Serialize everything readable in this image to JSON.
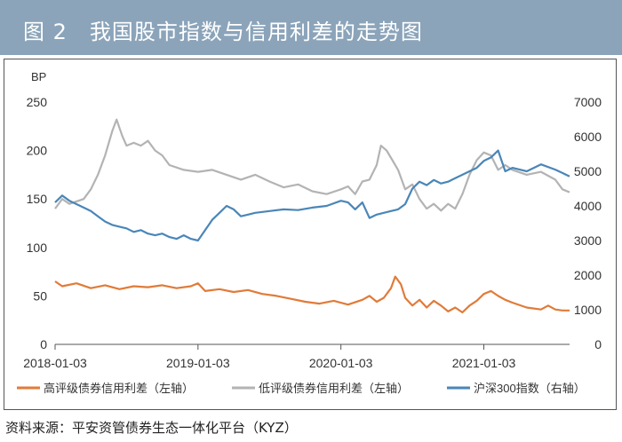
{
  "header": {
    "title": "图 2　我国股市指数与信用利差的走势图"
  },
  "footer": {
    "source": "资料来源：平安资管债券生态一体化平台（KYZ）"
  },
  "chart_data": {
    "type": "line",
    "title": "我国股市指数与信用利差的走势图",
    "left_axis": {
      "label": "BP",
      "min": 0,
      "max": 250,
      "ticks": [
        0,
        50,
        100,
        150,
        200,
        250
      ]
    },
    "right_axis": {
      "label": "",
      "min": 0,
      "max": 7000,
      "ticks": [
        0,
        1000,
        2000,
        3000,
        4000,
        5000,
        6000,
        7000
      ]
    },
    "x_axis": {
      "tick_labels": [
        "2018-01-03",
        "2019-01-03",
        "2020-01-03",
        "2021-01-03"
      ],
      "tick_positions": [
        2018.0,
        2019.0,
        2020.0,
        2021.0
      ],
      "range": [
        2018.0,
        2021.6
      ]
    },
    "legend_position": "bottom",
    "series": [
      {
        "name": "高评级债券信用利差（左轴）",
        "axis": "left",
        "color": "#e07b39",
        "points": [
          [
            2018.0,
            65
          ],
          [
            2018.05,
            60
          ],
          [
            2018.15,
            63
          ],
          [
            2018.25,
            58
          ],
          [
            2018.35,
            61
          ],
          [
            2018.45,
            57
          ],
          [
            2018.55,
            60
          ],
          [
            2018.65,
            59
          ],
          [
            2018.75,
            61
          ],
          [
            2018.85,
            58
          ],
          [
            2018.95,
            60
          ],
          [
            2019.0,
            63
          ],
          [
            2019.05,
            55
          ],
          [
            2019.15,
            57
          ],
          [
            2019.25,
            54
          ],
          [
            2019.35,
            56
          ],
          [
            2019.45,
            52
          ],
          [
            2019.55,
            50
          ],
          [
            2019.65,
            47
          ],
          [
            2019.75,
            44
          ],
          [
            2019.85,
            42
          ],
          [
            2019.95,
            45
          ],
          [
            2020.05,
            41
          ],
          [
            2020.15,
            46
          ],
          [
            2020.2,
            50
          ],
          [
            2020.25,
            44
          ],
          [
            2020.3,
            48
          ],
          [
            2020.35,
            58
          ],
          [
            2020.38,
            70
          ],
          [
            2020.42,
            62
          ],
          [
            2020.45,
            48
          ],
          [
            2020.5,
            40
          ],
          [
            2020.55,
            46
          ],
          [
            2020.6,
            38
          ],
          [
            2020.65,
            45
          ],
          [
            2020.7,
            40
          ],
          [
            2020.75,
            34
          ],
          [
            2020.8,
            38
          ],
          [
            2020.85,
            33
          ],
          [
            2020.9,
            40
          ],
          [
            2020.95,
            45
          ],
          [
            2021.0,
            52
          ],
          [
            2021.05,
            55
          ],
          [
            2021.1,
            50
          ],
          [
            2021.15,
            46
          ],
          [
            2021.2,
            43
          ],
          [
            2021.3,
            38
          ],
          [
            2021.4,
            36
          ],
          [
            2021.45,
            40
          ],
          [
            2021.5,
            36
          ],
          [
            2021.55,
            35
          ],
          [
            2021.6,
            35
          ]
        ]
      },
      {
        "name": "低评级债券信用利差（左轴）",
        "axis": "left",
        "color": "#b3b3b3",
        "points": [
          [
            2018.0,
            140
          ],
          [
            2018.05,
            150
          ],
          [
            2018.1,
            145
          ],
          [
            2018.2,
            150
          ],
          [
            2018.25,
            160
          ],
          [
            2018.3,
            175
          ],
          [
            2018.35,
            195
          ],
          [
            2018.4,
            220
          ],
          [
            2018.43,
            232
          ],
          [
            2018.47,
            215
          ],
          [
            2018.5,
            205
          ],
          [
            2018.55,
            208
          ],
          [
            2018.6,
            205
          ],
          [
            2018.65,
            210
          ],
          [
            2018.7,
            200
          ],
          [
            2018.75,
            195
          ],
          [
            2018.8,
            185
          ],
          [
            2018.9,
            180
          ],
          [
            2019.0,
            178
          ],
          [
            2019.1,
            180
          ],
          [
            2019.2,
            175
          ],
          [
            2019.3,
            170
          ],
          [
            2019.4,
            175
          ],
          [
            2019.5,
            168
          ],
          [
            2019.6,
            162
          ],
          [
            2019.7,
            165
          ],
          [
            2019.8,
            158
          ],
          [
            2019.9,
            155
          ],
          [
            2020.0,
            160
          ],
          [
            2020.05,
            163
          ],
          [
            2020.1,
            155
          ],
          [
            2020.15,
            168
          ],
          [
            2020.2,
            170
          ],
          [
            2020.25,
            185
          ],
          [
            2020.28,
            205
          ],
          [
            2020.32,
            200
          ],
          [
            2020.36,
            190
          ],
          [
            2020.4,
            180
          ],
          [
            2020.45,
            160
          ],
          [
            2020.5,
            165
          ],
          [
            2020.55,
            150
          ],
          [
            2020.6,
            140
          ],
          [
            2020.65,
            145
          ],
          [
            2020.7,
            138
          ],
          [
            2020.75,
            145
          ],
          [
            2020.8,
            140
          ],
          [
            2020.85,
            155
          ],
          [
            2020.9,
            175
          ],
          [
            2020.95,
            190
          ],
          [
            2021.0,
            198
          ],
          [
            2021.05,
            195
          ],
          [
            2021.1,
            180
          ],
          [
            2021.15,
            185
          ],
          [
            2021.2,
            180
          ],
          [
            2021.3,
            175
          ],
          [
            2021.4,
            178
          ],
          [
            2021.5,
            170
          ],
          [
            2021.55,
            160
          ],
          [
            2021.6,
            157
          ]
        ]
      },
      {
        "name": "沪深300指数（右轴）",
        "axis": "right",
        "color": "#4a86b8",
        "points": [
          [
            2018.0,
            4100
          ],
          [
            2018.05,
            4300
          ],
          [
            2018.1,
            4150
          ],
          [
            2018.15,
            4050
          ],
          [
            2018.2,
            3950
          ],
          [
            2018.25,
            3850
          ],
          [
            2018.3,
            3700
          ],
          [
            2018.35,
            3550
          ],
          [
            2018.4,
            3450
          ],
          [
            2018.45,
            3400
          ],
          [
            2018.5,
            3350
          ],
          [
            2018.55,
            3250
          ],
          [
            2018.6,
            3300
          ],
          [
            2018.65,
            3200
          ],
          [
            2018.7,
            3150
          ],
          [
            2018.75,
            3200
          ],
          [
            2018.8,
            3100
          ],
          [
            2018.85,
            3050
          ],
          [
            2018.9,
            3150
          ],
          [
            2018.95,
            3050
          ],
          [
            2019.0,
            3000
          ],
          [
            2019.05,
            3300
          ],
          [
            2019.1,
            3600
          ],
          [
            2019.15,
            3800
          ],
          [
            2019.2,
            4000
          ],
          [
            2019.25,
            3900
          ],
          [
            2019.3,
            3700
          ],
          [
            2019.35,
            3750
          ],
          [
            2019.4,
            3800
          ],
          [
            2019.5,
            3850
          ],
          [
            2019.6,
            3900
          ],
          [
            2019.7,
            3880
          ],
          [
            2019.8,
            3950
          ],
          [
            2019.9,
            4000
          ],
          [
            2020.0,
            4150
          ],
          [
            2020.05,
            4100
          ],
          [
            2020.1,
            3900
          ],
          [
            2020.15,
            4100
          ],
          [
            2020.2,
            3650
          ],
          [
            2020.25,
            3750
          ],
          [
            2020.3,
            3800
          ],
          [
            2020.35,
            3850
          ],
          [
            2020.4,
            3900
          ],
          [
            2020.45,
            4050
          ],
          [
            2020.5,
            4500
          ],
          [
            2020.55,
            4700
          ],
          [
            2020.6,
            4600
          ],
          [
            2020.65,
            4750
          ],
          [
            2020.7,
            4650
          ],
          [
            2020.75,
            4700
          ],
          [
            2020.8,
            4800
          ],
          [
            2020.85,
            4900
          ],
          [
            2020.9,
            5000
          ],
          [
            2020.95,
            5100
          ],
          [
            2021.0,
            5300
          ],
          [
            2021.05,
            5400
          ],
          [
            2021.1,
            5600
          ],
          [
            2021.15,
            5000
          ],
          [
            2021.2,
            5100
          ],
          [
            2021.3,
            5000
          ],
          [
            2021.4,
            5200
          ],
          [
            2021.5,
            5050
          ],
          [
            2021.55,
            4950
          ],
          [
            2021.6,
            4850
          ]
        ]
      }
    ]
  }
}
